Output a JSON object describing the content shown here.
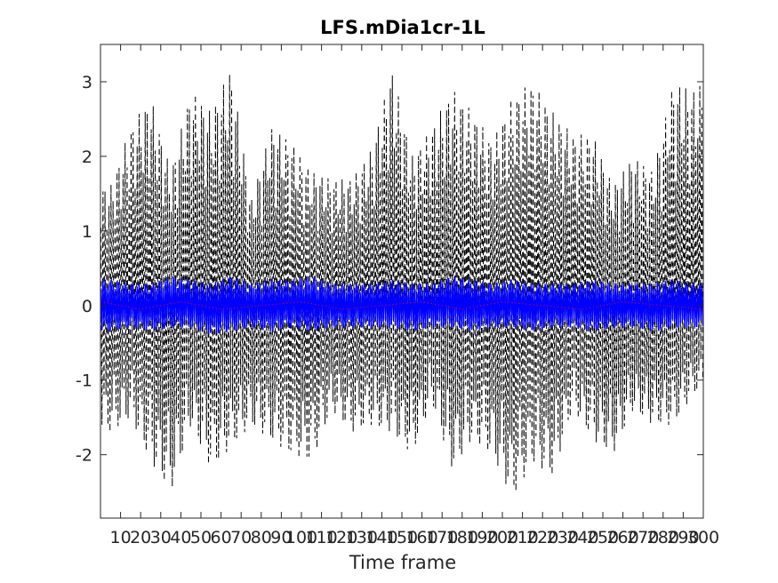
{
  "chart_data": {
    "type": "line",
    "title": "LFS.mDia1cr-1L",
    "xlabel": "Time frame",
    "ylabel": "",
    "xlim": [
      0,
      300
    ],
    "ylim": [
      -2.85,
      3.5
    ],
    "x_ticks": [
      "10",
      "20",
      "30",
      "40",
      "50",
      "60",
      "70",
      "80",
      "90",
      "100",
      "110",
      "120",
      "130",
      "140",
      "150",
      "160",
      "170",
      "180",
      "190",
      "200",
      "210",
      "220",
      "230",
      "240",
      "250",
      "260",
      "270",
      "280",
      "290",
      "300"
    ],
    "y_ticks": [
      "-2",
      "-1",
      "0",
      "1",
      "2",
      "3"
    ],
    "grid": false,
    "legend": "none",
    "series": [
      {
        "style": "dashed",
        "color": "#000000",
        "x": [
          5,
          15,
          25,
          35,
          45,
          55,
          65,
          75,
          85,
          95,
          105,
          115,
          125,
          135,
          145,
          155,
          165,
          175,
          185,
          195,
          205,
          215,
          225,
          235,
          245,
          255,
          265,
          275,
          285,
          295,
          300
        ],
        "upper": [
          1.6,
          2.4,
          2.8,
          1.8,
          2.9,
          2.6,
          3.2,
          1.4,
          2.4,
          2.2,
          1.8,
          1.7,
          1.7,
          2.1,
          3.2,
          2.0,
          2.4,
          2.9,
          2.6,
          2.2,
          2.8,
          3.0,
          2.6,
          2.3,
          2.3,
          1.6,
          2.0,
          1.8,
          3.0,
          2.9,
          3.0
        ],
        "lower": [
          -1.7,
          -1.5,
          -2.1,
          -2.5,
          -1.6,
          -2.2,
          -1.9,
          -1.6,
          -1.8,
          -2.0,
          -2.1,
          -1.4,
          -1.7,
          -1.6,
          -1.7,
          -2.0,
          -1.3,
          -2.2,
          -1.8,
          -2.0,
          -2.6,
          -2.1,
          -2.3,
          -1.4,
          -1.8,
          -2.0,
          -1.4,
          -1.6,
          -1.6,
          -1.2,
          -1.1
        ]
      },
      {
        "style": "solid",
        "color": "#0000ff",
        "x": [
          5,
          15,
          25,
          35,
          45,
          55,
          65,
          75,
          85,
          95,
          105,
          115,
          125,
          135,
          145,
          155,
          165,
          175,
          185,
          195,
          205,
          215,
          225,
          235,
          245,
          255,
          265,
          275,
          285,
          295,
          300
        ],
        "upper": [
          0.35,
          0.3,
          0.3,
          0.4,
          0.35,
          0.3,
          0.4,
          0.3,
          0.35,
          0.35,
          0.4,
          0.3,
          0.3,
          0.3,
          0.35,
          0.3,
          0.3,
          0.4,
          0.35,
          0.3,
          0.35,
          0.3,
          0.3,
          0.3,
          0.35,
          0.3,
          0.3,
          0.3,
          0.35,
          0.3,
          0.3
        ],
        "lower": [
          -0.35,
          -0.3,
          -0.35,
          -0.3,
          -0.3,
          -0.4,
          -0.35,
          -0.3,
          -0.35,
          -0.3,
          -0.35,
          -0.3,
          -0.3,
          -0.3,
          -0.3,
          -0.35,
          -0.3,
          -0.3,
          -0.35,
          -0.3,
          -0.3,
          -0.35,
          -0.3,
          -0.3,
          -0.35,
          -0.3,
          -0.3,
          -0.35,
          -0.3,
          -0.3,
          -0.3
        ]
      },
      {
        "style": "dotted",
        "color": "#ff0000",
        "x": [
          0,
          20,
          40,
          60,
          80,
          100,
          120,
          140,
          160,
          180,
          200,
          220,
          240,
          260,
          280,
          300
        ],
        "values": [
          0.05,
          -0.05,
          0.05,
          -0.05,
          0.0,
          0.05,
          -0.05,
          0.0,
          0.05,
          -0.05,
          0.05,
          0.0,
          -0.05,
          0.05,
          0.0,
          -0.05
        ]
      }
    ]
  }
}
